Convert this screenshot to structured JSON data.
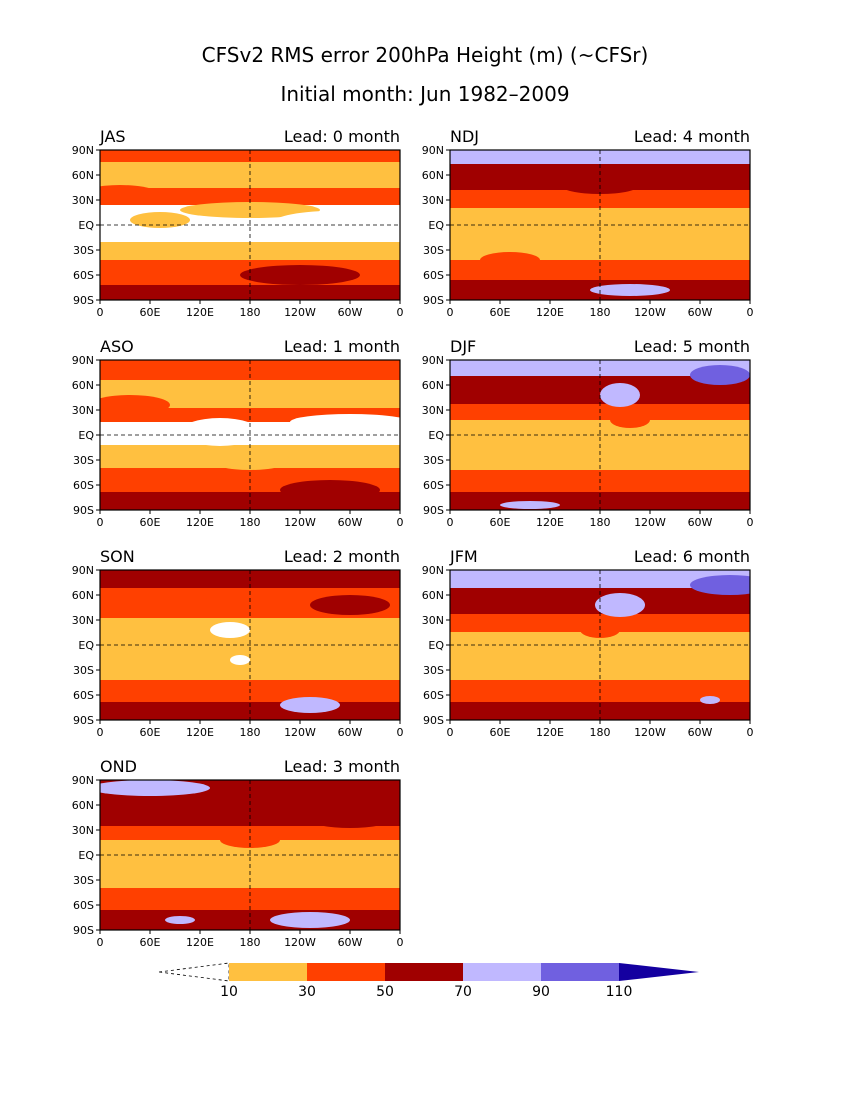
{
  "title": "CFSv2 RMS error 200hPa Height (m) (~CFSr)",
  "subtitle": "Initial month: Jun 1982–2009",
  "colors": {
    "lt10": "#ffffff",
    "c10_30": "#ffc040",
    "c30_50": "#ff4000",
    "c50_70": "#a00000",
    "c70_90": "#c0b8ff",
    "c90_110": "#7060e0",
    "gt110": "#1400a0",
    "coast": "#000000"
  },
  "axes": {
    "lat_ticks": [
      "90N",
      "60N",
      "30N",
      "EQ",
      "30S",
      "60S",
      "90S"
    ],
    "lon_ticks": [
      "0",
      "60E",
      "120E",
      "180",
      "120W",
      "60W",
      "0"
    ]
  },
  "panels": [
    {
      "season": "JAS",
      "lead": "Lead: 0 month"
    },
    {
      "season": "NDJ",
      "lead": "Lead: 4 month"
    },
    {
      "season": "ASO",
      "lead": "Lead: 1 month"
    },
    {
      "season": "DJF",
      "lead": "Lead: 5 month"
    },
    {
      "season": "SON",
      "lead": "Lead: 2 month"
    },
    {
      "season": "JFM",
      "lead": "Lead: 6 month"
    },
    {
      "season": "OND",
      "lead": "Lead: 3 month"
    }
  ],
  "colorbar": {
    "labels": [
      "10",
      "30",
      "50",
      "70",
      "90",
      "110"
    ]
  }
}
